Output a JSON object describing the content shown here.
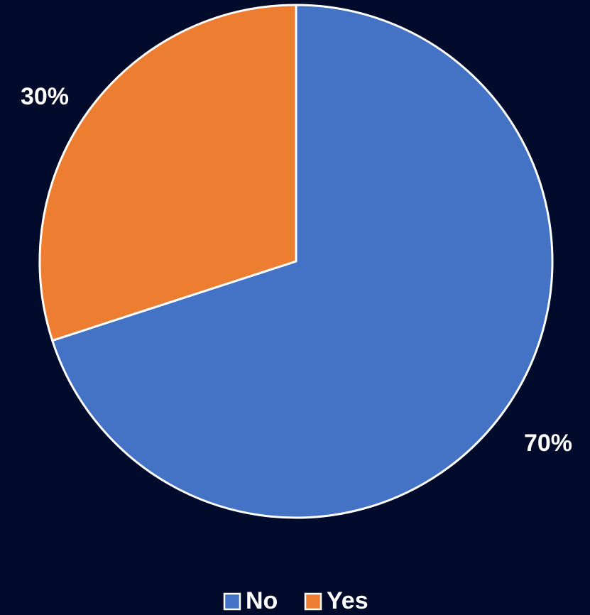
{
  "chart_data": {
    "type": "pie",
    "title": "",
    "categories": [
      "No",
      "Yes"
    ],
    "values": [
      70,
      30
    ],
    "data_labels": [
      "70%",
      "30%"
    ],
    "colors": [
      "#4472c4",
      "#ed7d31"
    ],
    "start_angle_deg": 0,
    "direction": "clockwise",
    "legend_position": "bottom",
    "legend": [
      {
        "label": "No",
        "color": "#4472c4"
      },
      {
        "label": "Yes",
        "color": "#ed7d31"
      }
    ]
  }
}
